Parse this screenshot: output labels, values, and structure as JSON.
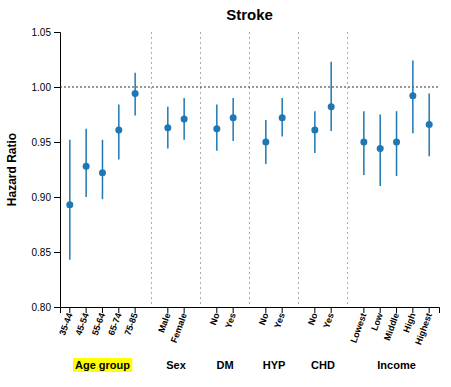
{
  "chart_data": {
    "type": "errorbar",
    "title": "Stroke",
    "ylabel": "Hazard Ratio",
    "ylim": [
      0.8,
      1.05
    ],
    "yticks": [
      {
        "value": 0.8,
        "label": "0.80"
      },
      0.85,
      {
        "value": 0.9,
        "label": "0.90"
      },
      0.95,
      {
        "value": 1.0,
        "label": "1.00"
      },
      1.05
    ],
    "hline": 1.0,
    "groups": [
      {
        "label": "Age group",
        "color": "yellow",
        "categories": [
          "35-44",
          "45-54",
          "55-64",
          "65-74",
          "75-85"
        ],
        "values": [
          0.893,
          0.928,
          0.922,
          0.961,
          0.994
        ],
        "lo": [
          0.843,
          0.9,
          0.898,
          0.934,
          0.974
        ],
        "hi": [
          0.952,
          0.962,
          0.952,
          0.984,
          1.013
        ]
      },
      {
        "label": "Sex",
        "categories": [
          "Male",
          "Female"
        ],
        "values": [
          0.963,
          0.971
        ],
        "lo": [
          0.944,
          0.952
        ],
        "hi": [
          0.982,
          0.99
        ]
      },
      {
        "label": "DM",
        "categories": [
          "No",
          "Yes"
        ],
        "values": [
          0.962,
          0.972
        ],
        "lo": [
          0.942,
          0.951
        ],
        "hi": [
          0.984,
          0.99
        ]
      },
      {
        "label": "HYP",
        "categories": [
          "No",
          "Yes"
        ],
        "values": [
          0.95,
          0.972
        ],
        "lo": [
          0.93,
          0.955
        ],
        "hi": [
          0.97,
          0.99
        ]
      },
      {
        "label": "CHD",
        "categories": [
          "No",
          "Yes"
        ],
        "values": [
          0.961,
          0.982
        ],
        "lo": [
          0.94,
          0.96
        ],
        "hi": [
          0.978,
          1.023
        ]
      },
      {
        "label": "Income",
        "categories": [
          "Lowest",
          "Low",
          "Middle",
          "High",
          "Highest"
        ],
        "values": [
          0.95,
          0.944,
          0.95,
          0.992,
          0.966
        ],
        "lo": [
          0.92,
          0.91,
          0.919,
          0.958,
          0.937
        ],
        "hi": [
          0.978,
          0.975,
          0.978,
          1.024,
          0.994
        ]
      }
    ]
  }
}
